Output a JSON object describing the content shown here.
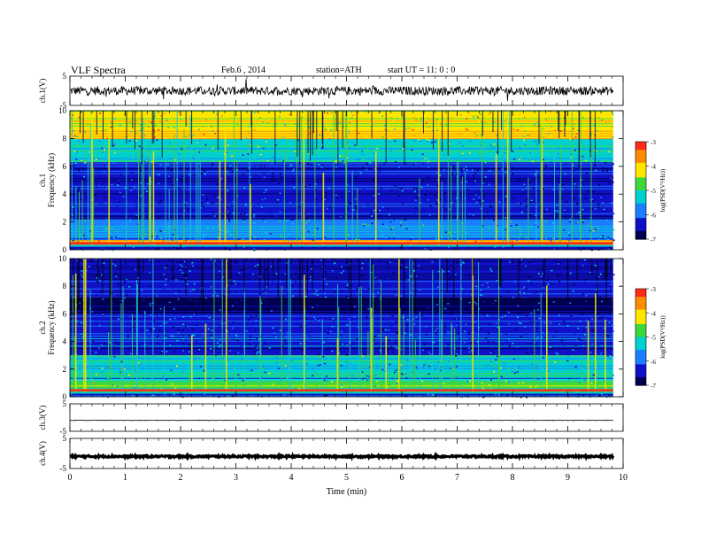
{
  "header": {
    "title": "VLF Spectra",
    "date": "Feb.6 , 2014",
    "station": "station=ATH",
    "start": "start UT = 11: 0 : 0"
  },
  "colorbar": {
    "label": "log(PSD(V²/Hz))",
    "ticks": [
      -3,
      -4,
      -5,
      -6,
      -7
    ],
    "colors": [
      "#ff2a1a",
      "#ff8c00",
      "#ffe600",
      "#3cd83c",
      "#00d0d0",
      "#1a7fff",
      "#1010c8",
      "#000050"
    ]
  },
  "chart_data": [
    {
      "type": "line",
      "panel": "ch1-waveform",
      "ylabel": "ch.1(V)",
      "ylim": [
        -5,
        5
      ],
      "yticks": [
        "5",
        "-5"
      ],
      "description_values": {
        "baseline": 0,
        "noise_amplitude": 1.5
      }
    },
    {
      "type": "heatmap",
      "panel": "ch1-spectrogram",
      "ylabel": "ch.1\nFrequency (kHz)",
      "ylabel_lines": [
        "ch.1",
        "Frequency (kHz)"
      ],
      "ylim": [
        0,
        10
      ],
      "yticks": [
        "0",
        "2",
        "4",
        "6",
        "8",
        "10"
      ],
      "bands_khz": [
        {
          "from": 0.0,
          "to": 0.3,
          "level": -6.5
        },
        {
          "from": 0.3,
          "to": 0.7,
          "level": -3.3
        },
        {
          "from": 0.7,
          "to": 2.2,
          "level": -5.6
        },
        {
          "from": 2.2,
          "to": 6.3,
          "level": -6.5
        },
        {
          "from": 6.3,
          "to": 8.0,
          "level": -5.2
        },
        {
          "from": 8.0,
          "to": 10.0,
          "level": -4.2
        }
      ]
    },
    {
      "type": "heatmap",
      "panel": "ch2-spectrogram",
      "ylabel": "ch.2\nFrequency (kHz)",
      "ylabel_lines": [
        "ch.2",
        "Frequency (kHz)"
      ],
      "ylim": [
        0,
        10
      ],
      "yticks": [
        "0",
        "2",
        "4",
        "6",
        "8",
        "10"
      ],
      "bands_khz": [
        {
          "from": 0.0,
          "to": 0.3,
          "level": -6.5
        },
        {
          "from": 0.3,
          "to": 1.2,
          "level": -4.8
        },
        {
          "from": 1.2,
          "to": 3.0,
          "level": -5.5
        },
        {
          "from": 3.0,
          "to": 6.0,
          "level": -6.3
        },
        {
          "from": 6.0,
          "to": 7.2,
          "level": -6.8
        },
        {
          "from": 7.2,
          "to": 10.0,
          "level": -6.4
        }
      ]
    },
    {
      "type": "line",
      "panel": "ch3-waveform",
      "ylabel": "ch.3(V)",
      "ylim": [
        -5,
        5
      ],
      "yticks": [
        "5",
        "-5"
      ],
      "description_values": {
        "baseline": -1,
        "noise_amplitude": 0.1
      }
    },
    {
      "type": "line",
      "panel": "ch4-waveform",
      "ylabel": "ch.4(V)",
      "ylim": [
        -5,
        5
      ],
      "yticks": [
        "5",
        "-5"
      ],
      "description_values": {
        "baseline": -1,
        "noise_amplitude": 0.3
      }
    }
  ],
  "xaxis": {
    "label": "Time (min)",
    "range": [
      0,
      10
    ],
    "ticks": [
      "0",
      "1",
      "2",
      "3",
      "4",
      "5",
      "6",
      "7",
      "8",
      "9",
      "10"
    ],
    "data_end": 9.82
  }
}
